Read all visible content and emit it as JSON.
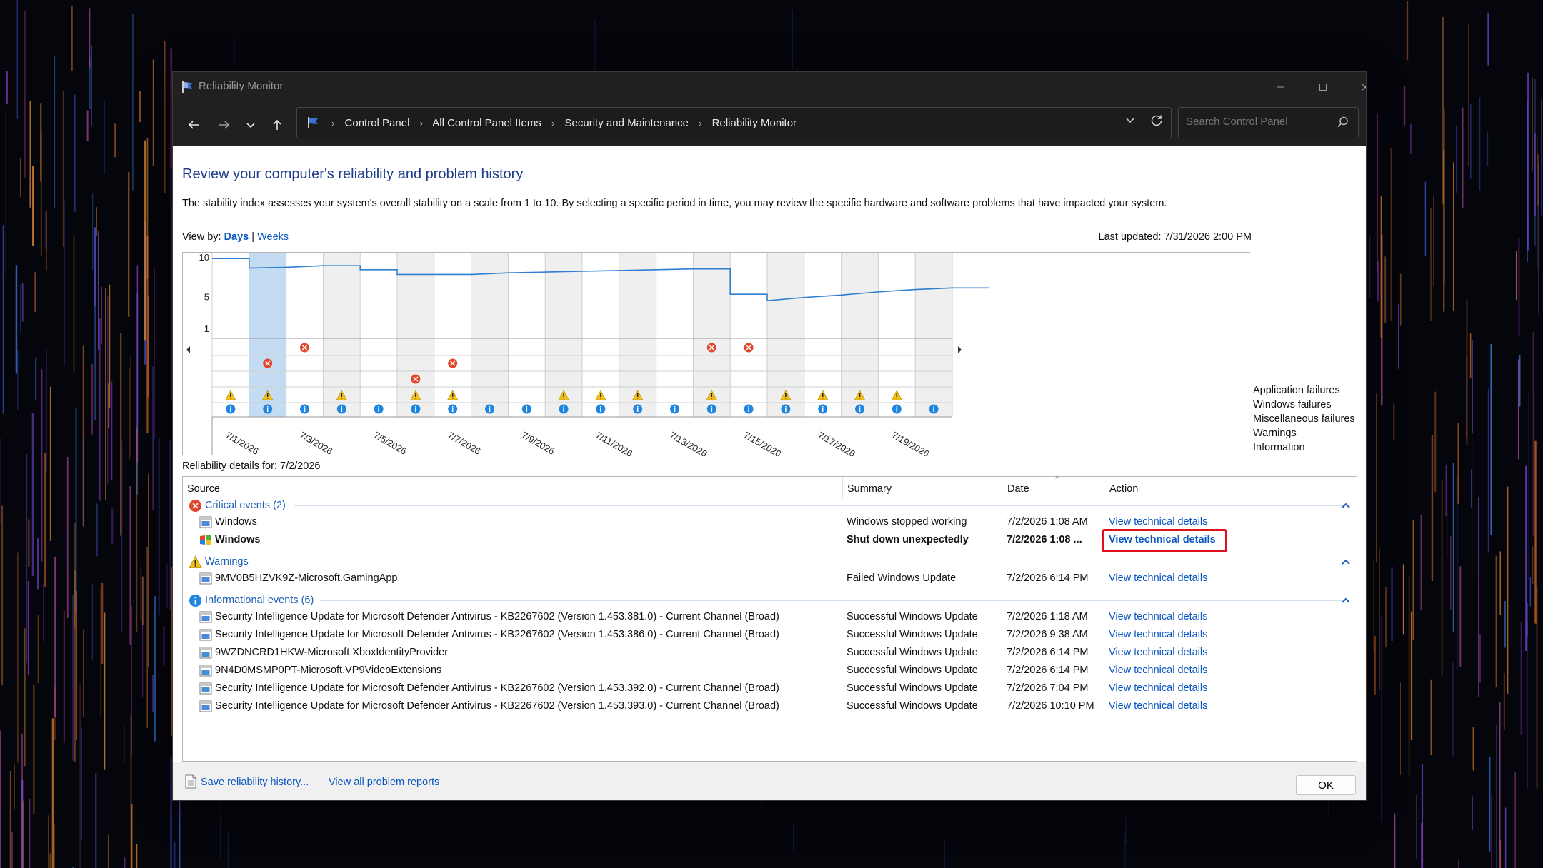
{
  "window": {
    "title": "Reliability Monitor",
    "controls": [
      "minimize",
      "maximize",
      "close"
    ]
  },
  "nav": {
    "breadcrumbs": [
      "Control Panel",
      "All Control Panel Items",
      "Security and Maintenance",
      "Reliability Monitor"
    ],
    "search_placeholder": "Search Control Panel"
  },
  "page": {
    "heading": "Review your computer's reliability and problem history",
    "description": "The stability index assesses your system's overall stability on a scale from 1 to 10. By selecting a specific period in time, you may review the specific hardware and software problems that have impacted your system.",
    "view_by_label": "View by:",
    "view_by_days": "Days",
    "view_by_sep": "|",
    "view_by_weeks": "Weeks",
    "last_updated": "Last updated: 7/31/2026 2:00 PM"
  },
  "chart_data": {
    "type": "line",
    "y_ticks": [
      "10",
      "5",
      "1"
    ],
    "ylim": [
      0,
      10
    ],
    "x_labels": [
      "7/1/2026",
      "7/3/2026",
      "7/5/2026",
      "7/7/2026",
      "7/9/2026",
      "7/11/2026",
      "7/13/2026",
      "7/15/2026",
      "7/17/2026",
      "7/19/2026"
    ],
    "selected_column": 1,
    "stability_index": [
      9.8,
      8.6,
      8.7,
      8.9,
      8.4,
      7.8,
      7.8,
      7.8,
      8.0,
      8.1,
      8.2,
      8.3,
      8.4,
      8.5,
      5.3,
      4.5,
      4.9,
      5.2,
      5.6,
      5.9,
      6.1
    ],
    "legend": [
      "Application failures",
      "Windows failures",
      "Miscellaneous failures",
      "Warnings",
      "Information"
    ],
    "events": {
      "application_failures": [
        2,
        13,
        14
      ],
      "windows_failures": [
        1,
        6
      ],
      "miscellaneous_failures": [
        5
      ],
      "warnings": [
        0,
        1,
        3,
        5,
        6,
        9,
        10,
        11,
        13,
        15,
        16,
        17,
        18
      ],
      "information": [
        0,
        1,
        2,
        3,
        4,
        5,
        6,
        7,
        8,
        9,
        10,
        11,
        12,
        13,
        14,
        15,
        16,
        17,
        18,
        19
      ]
    }
  },
  "details": {
    "label": "Reliability details for: 7/2/2026",
    "columns": [
      "Source",
      "Summary",
      "Date",
      "Action"
    ],
    "groups": {
      "critical": {
        "label": "Critical events (2)",
        "rows": [
          {
            "source": "Windows",
            "summary": "Windows stopped working",
            "date": "7/2/2026 1:08 AM",
            "action": "View technical details"
          },
          {
            "source": "Windows",
            "summary": "Shut down unexpectedly",
            "date": "7/2/2026 1:08 ...",
            "action": "View technical details"
          }
        ]
      },
      "warnings": {
        "label": "Warnings",
        "rows": [
          {
            "source": "9MV0B5HZVK9Z-Microsoft.GamingApp",
            "summary": "Failed Windows Update",
            "date": "7/2/2026 6:14 PM",
            "action": "View technical details"
          }
        ]
      },
      "info": {
        "label": "Informational events (6)",
        "rows": [
          {
            "source": "Security Intelligence Update for Microsoft Defender Antivirus - KB2267602 (Version 1.453.381.0) - Current Channel (Broad)",
            "summary": "Successful Windows Update",
            "date": "7/2/2026 1:18 AM",
            "action": "View technical details"
          },
          {
            "source": "Security Intelligence Update for Microsoft Defender Antivirus - KB2267602 (Version 1.453.386.0) - Current Channel (Broad)",
            "summary": "Successful Windows Update",
            "date": "7/2/2026 9:38 AM",
            "action": "View technical details"
          },
          {
            "source": "9WZDNCRD1HKW-Microsoft.XboxIdentityProvider",
            "summary": "Successful Windows Update",
            "date": "7/2/2026 6:14 PM",
            "action": "View technical details"
          },
          {
            "source": "9N4D0MSMP0PT-Microsoft.VP9VideoExtensions",
            "summary": "Successful Windows Update",
            "date": "7/2/2026 6:14 PM",
            "action": "View technical details"
          },
          {
            "source": "Security Intelligence Update for Microsoft Defender Antivirus - KB2267602 (Version 1.453.392.0) - Current Channel (Broad)",
            "summary": "Successful Windows Update",
            "date": "7/2/2026 7:04 PM",
            "action": "View technical details"
          },
          {
            "source": "Security Intelligence Update for Microsoft Defender Antivirus - KB2267602 (Version 1.453.393.0) - Current Channel (Broad)",
            "summary": "Successful Windows Update",
            "date": "7/2/2026 10:10 PM",
            "action": "View technical details"
          }
        ]
      }
    }
  },
  "footer": {
    "save_link": "Save reliability history...",
    "view_all_link": "View all problem reports",
    "ok": "OK"
  },
  "colors": {
    "accent_link": "#0b57c2",
    "heading": "#1e3c8c",
    "highlight": "#e0101e",
    "error": "#e2472d",
    "warning": "#f2c21b",
    "info": "#1f86e0"
  }
}
